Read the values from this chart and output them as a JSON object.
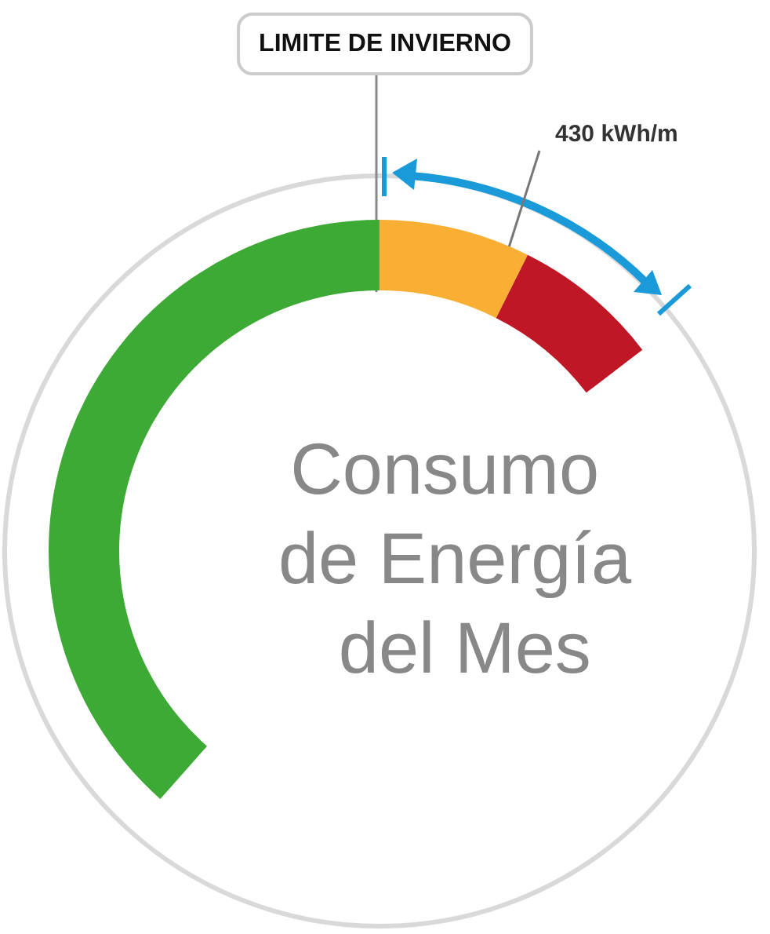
{
  "chart_data": {
    "type": "donut",
    "title": "Consumo de Energía del Mes",
    "categories": [
      null,
      null,
      null
    ],
    "values": [
      72.5,
      13.9,
      13.6
    ],
    "colors": [
      "#3daa35",
      "#f8af33",
      "#bf1726"
    ],
    "annotations": [
      "LIMITE DE INVIERNO",
      "430 kWh/m"
    ],
    "legend": false
  }
}
